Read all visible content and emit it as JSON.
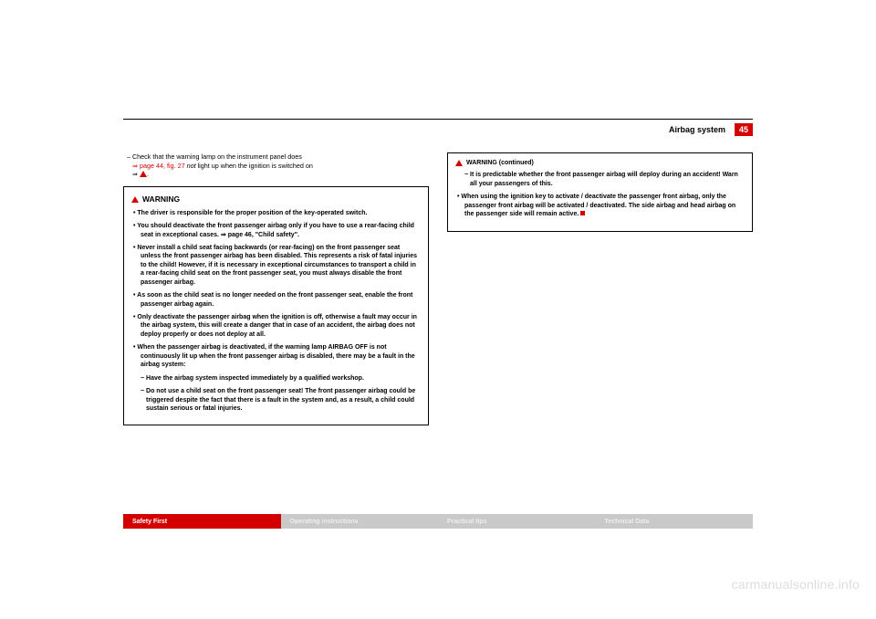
{
  "header": {
    "section": "Airbag system",
    "page": "45"
  },
  "body": {
    "line1_a": "–  Check that the warning lamp on the instrument panel does",
    "line1_b_link": "⇒ page 44, fig. 27",
    "line1_c_italic": " not ",
    "line1_d": "light up when the ignition is switched on",
    "line1_e": "⇒ ",
    "line1_f": "."
  },
  "warning_left": {
    "title": "WARNING",
    "p1": "•   The driver is responsible for the proper position of the key-operated switch.",
    "p2": "•   You should deactivate the front passenger airbag only if you have to use a rear-facing child seat in exceptional cases. ⇒ page 46, \"Child safety\".",
    "p3": "•   Never install a child seat facing backwards (or rear-facing) on the front passenger seat unless the front passenger airbag has been disabled. This represents a risk of fatal injuries to the child! However, if it is necessary in exceptional circumstances to transport a child in a rear-facing child seat on the front passenger seat, you must always disable the front passenger airbag.",
    "p4": "•   As soon as the child seat is no longer needed on the front passenger seat, enable the front passenger airbag again.",
    "p5": "•   Only deactivate the passenger airbag when the ignition is off, otherwise a fault may occur in the airbag system, this will create a danger that in case of an accident, the airbag does not deploy properly or does not deploy at all.",
    "p6": "•   When the passenger airbag is deactivated, if the warning lamp AIRBAG OFF is not continuously lit up when the front passenger airbag is disabled, there may be a fault in the airbag system:",
    "s1": "−  Have the airbag system inspected immediately by a qualified workshop.",
    "s2": "−  Do not use a child seat on the front passenger seat! The front passenger airbag could be triggered despite the fact that there is a fault in the system and, as a result, a child could sustain serious or fatal injuries."
  },
  "warning_right": {
    "title": "WARNING (continued)",
    "s1": "−  It is predictable whether the front passenger airbag will deploy during an accident! Warn all your passengers of this.",
    "p1": "•   When using the ignition key to activate / deactivate the passenger front airbag, only the passenger front airbag will be activated / deactivated. The side airbag and head airbag on the passenger side will remain active. "
  },
  "footer": {
    "a": "Safety First",
    "b": "Operating instructions",
    "c": "Practical tips",
    "d": "Technical Data"
  },
  "watermark": "carmanualsonline.info"
}
